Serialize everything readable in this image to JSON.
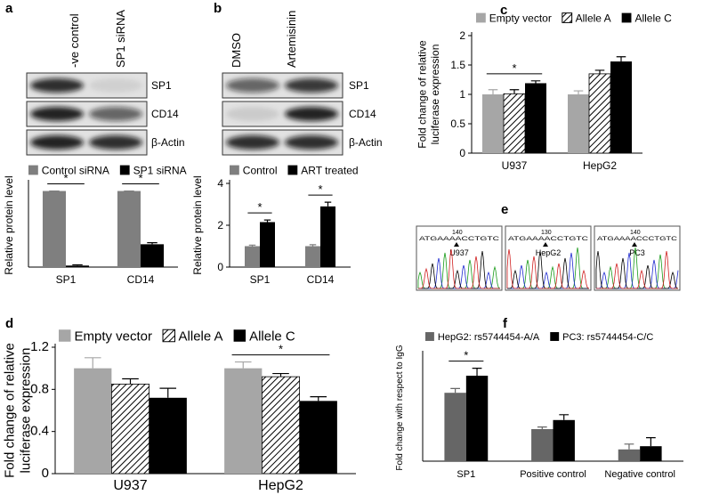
{
  "panel_labels": [
    "a",
    "b",
    "c",
    "d",
    "e",
    "f"
  ],
  "blots": [
    {
      "columns": [
        "-ve control",
        "SP1 siRNA"
      ],
      "rows": [
        "SP1",
        "CD14",
        "β-Actin"
      ]
    },
    {
      "columns": [
        "DMSO",
        "Artemisinin"
      ],
      "rows": [
        "SP1",
        "CD14",
        "β-Actin"
      ]
    }
  ],
  "chromatograms": [
    {
      "sample": "U937",
      "position": 140,
      "sequence": "ATGAAAACCTGTC"
    },
    {
      "sample": "HepG2",
      "position": 130,
      "sequence": "ATGAAAACCTGTC"
    },
    {
      "sample": "PC3",
      "position": 140,
      "sequence": "ATGAAAACCCTGTC"
    }
  ],
  "chart_data": [
    {
      "type": "bar",
      "ylabel": [
        "Relative protein level"
      ],
      "categories": [
        "SP1",
        "CD14"
      ],
      "series": [
        {
          "name": "Control siRNA",
          "color": "#7f7f7f",
          "values": [
            1,
            1
          ],
          "errors": [
            0,
            0
          ]
        },
        {
          "name": "SP1 siRNA",
          "color": "#000000",
          "values": [
            0.02,
            0.3
          ],
          "errors": [
            0.01,
            0.02
          ]
        }
      ],
      "ylim": [
        0,
        1.1
      ],
      "annotations": [
        "*",
        "*"
      ]
    },
    {
      "type": "bar",
      "ylabel": [
        "Relative protein level"
      ],
      "categories": [
        "SP1",
        "CD14"
      ],
      "series": [
        {
          "name": "Control",
          "color": "#7f7f7f",
          "values": [
            1,
            1
          ],
          "errors": [
            0.05,
            0.07
          ]
        },
        {
          "name": "ART treated",
          "color": "#000000",
          "values": [
            2.15,
            2.9
          ],
          "errors": [
            0.1,
            0.2
          ]
        }
      ],
      "ylim": [
        0,
        4
      ],
      "yticks": [
        0,
        2,
        4
      ],
      "annotations": [
        "*",
        "*"
      ]
    },
    {
      "type": "bar",
      "ylabel": [
        "Fold change of relative",
        "luciferase expression"
      ],
      "categories": [
        "U937",
        "HepG2"
      ],
      "series": [
        {
          "name": "Empty vector",
          "color": "#a6a6a6",
          "values": [
            1.0,
            1.0
          ],
          "errors": [
            0.08,
            0.06
          ]
        },
        {
          "name": "Allele A",
          "color": "#000000",
          "hatch": true,
          "values": [
            1.01,
            1.35
          ],
          "errors": [
            0.07,
            0.06
          ]
        },
        {
          "name": "Allele C",
          "color": "#000000",
          "values": [
            1.19,
            1.56
          ],
          "errors": [
            0.04,
            0.08
          ]
        }
      ],
      "ylim": [
        0,
        2
      ],
      "yticks": [
        0,
        0.5,
        1,
        1.5,
        2
      ],
      "annotations": [
        "*"
      ]
    },
    {
      "type": "bar",
      "ylabel": [
        "Fold change of relative",
        "luciferase expression"
      ],
      "categories": [
        "U937",
        "HepG2"
      ],
      "series": [
        {
          "name": "Empty vector",
          "color": "#a6a6a6",
          "values": [
            1.0,
            1.0
          ],
          "errors": [
            0.1,
            0.06
          ]
        },
        {
          "name": "Allele A",
          "color": "#000000",
          "hatch": true,
          "values": [
            0.85,
            0.92
          ],
          "errors": [
            0.05,
            0.03
          ]
        },
        {
          "name": "Allele C",
          "color": "#000000",
          "values": [
            0.72,
            0.69
          ],
          "errors": [
            0.09,
            0.04
          ]
        }
      ],
      "ylim": [
        0,
        1.2
      ],
      "yticks": [
        0,
        0.4,
        0.8,
        1.2
      ],
      "annotations": [
        "*"
      ]
    },
    {
      "type": "bar",
      "ylabel": [
        "Fold change with respect to IgG"
      ],
      "categories": [
        "SP1",
        "Positive control",
        "Negative control"
      ],
      "series": [
        {
          "name": "HepG2: rs5744454-A/A",
          "color": "#666666",
          "values": [
            6.4,
            3.0,
            1.1
          ],
          "errors": [
            0.4,
            0.2,
            0.5
          ]
        },
        {
          "name": "PC3: rs5744454-C/C",
          "color": "#000000",
          "values": [
            8.0,
            3.85,
            1.4
          ],
          "errors": [
            0.7,
            0.5,
            0.8
          ]
        }
      ],
      "ylim": [
        0,
        10
      ],
      "annotations": [
        "*"
      ]
    }
  ]
}
